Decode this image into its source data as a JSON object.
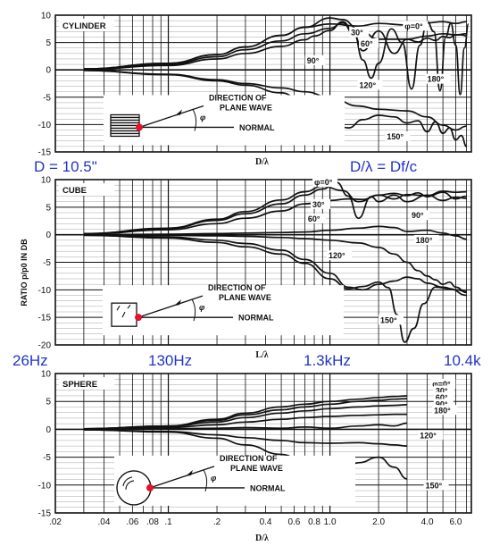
{
  "ylabel": "RATIO p/p0 IN DB",
  "labels": {
    "direction": "DIRECTION OF",
    "plane_wave": "PLANE WAVE",
    "normal": "NORMAL",
    "phi_symbol": "φ"
  },
  "blue_notes": {
    "d_size": "D = 10.5\"",
    "formula": "D/λ = Df/c",
    "freqs": [
      "26Hz",
      "130Hz",
      "1.3kHz",
      "10.4k"
    ]
  },
  "colors": {
    "ink": "#111111",
    "note": "#2233c8",
    "marker": "#e8102a"
  },
  "chart_data": [
    {
      "type": "line",
      "title": "CYLINDER",
      "xlabel": "D/λ",
      "xscale": "log",
      "xlim": [
        0.02,
        7.5
      ],
      "ylim": [
        -15,
        10
      ],
      "yticks": [
        "10",
        "5",
        "0",
        "-5",
        "-10",
        "-15"
      ],
      "xticks": [],
      "grid": true,
      "series": [
        {
          "name": "φ=0°",
          "x": [
            0.03,
            0.1,
            0.2,
            0.3,
            0.5,
            0.7,
            1.0,
            1.5,
            2.0,
            3.0,
            4.0,
            5.0,
            6.0,
            7.0
          ],
          "y": [
            0.2,
            1.2,
            2.8,
            4.2,
            6.3,
            7.8,
            8.4,
            8.0,
            8.5,
            8.2,
            8.6,
            8.8,
            8.5,
            8.8
          ]
        },
        {
          "name": "30°",
          "x": [
            0.03,
            0.1,
            0.2,
            0.3,
            0.5,
            0.7,
            1.0,
            1.2,
            1.5,
            2.0,
            3.0,
            4.0,
            5.0,
            6.0,
            7.0
          ],
          "y": [
            0.2,
            1.2,
            2.8,
            4.2,
            6.3,
            7.8,
            9.5,
            9.2,
            7.5,
            5.6,
            5.6,
            6.2,
            6.6,
            6.4,
            6.6
          ]
        },
        {
          "name": "60°",
          "x": [
            0.03,
            0.1,
            0.2,
            0.3,
            0.5,
            0.7,
            1.0,
            1.2,
            1.4,
            1.6,
            2.0,
            2.5,
            3.0,
            3.5,
            4.0,
            4.5,
            5.0,
            5.5,
            6.0,
            6.5,
            7.0
          ],
          "y": [
            0.1,
            1.0,
            2.4,
            3.7,
            5.3,
            6.6,
            7.6,
            8.6,
            6.6,
            3.5,
            7.1,
            3.0,
            5.6,
            5.1,
            5.8,
            5.4,
            6.1,
            5.9,
            6.4,
            6.4,
            6.2
          ]
        },
        {
          "name": "90°",
          "x": [
            0.03,
            0.1,
            0.2,
            0.3,
            0.5,
            0.7,
            0.8,
            1.0,
            1.2,
            1.4,
            1.6,
            1.8,
            2.0,
            2.4,
            2.8,
            3.2,
            3.6,
            4.0,
            4.4,
            4.8,
            5.2,
            5.6,
            6.0,
            6.4,
            6.8,
            7.2
          ],
          "y": [
            0.1,
            0.8,
            2.0,
            3.0,
            4.3,
            5.5,
            6.2,
            7.2,
            8.8,
            7.0,
            1.8,
            -1.5,
            1.2,
            7.5,
            5.0,
            -3.5,
            4.5,
            8.8,
            7.0,
            -3.8,
            6.0,
            8.5,
            4.5,
            -4.5,
            4.0,
            8.4
          ]
        },
        {
          "name": "120°",
          "x": [
            0.03,
            0.1,
            0.2,
            0.3,
            0.5,
            0.7,
            1.0,
            1.5,
            2.0,
            3.0,
            4.0,
            5.0,
            6.0,
            7.0
          ],
          "y": [
            -0.1,
            -0.8,
            -1.8,
            -2.5,
            -3.3,
            -4.0,
            -5.0,
            -6.6,
            -7.2,
            -7.5,
            -8.6,
            -10.1,
            -11.0,
            -10.3
          ]
        },
        {
          "name": "150°",
          "x": [
            0.03,
            0.1,
            0.2,
            0.3,
            0.5,
            0.7,
            1.0,
            1.3,
            1.6,
            2.0,
            2.5,
            3.0,
            3.5,
            4.0,
            4.5,
            5.0,
            5.5,
            6.0,
            6.5,
            7.0
          ],
          "y": [
            -0.1,
            -0.9,
            -2.0,
            -2.8,
            -4.2,
            -6.2,
            -9.2,
            -10.6,
            -9.1,
            -8.3,
            -8.6,
            -9.7,
            -9.3,
            -11.3,
            -9.5,
            -11.6,
            -10.6,
            -12.8,
            -12.0,
            -14.0
          ]
        }
      ],
      "annotations": [
        {
          "text": "φ=0°",
          "x": 2.9,
          "y": 7.5
        },
        {
          "text": "30°",
          "x": 1.35,
          "y": 6.3
        },
        {
          "text": "60°",
          "x": 1.55,
          "y": 4.3
        },
        {
          "text": "90°",
          "x": 0.72,
          "y": 1.2
        },
        {
          "text": "120°",
          "x": 1.52,
          "y": -3.3
        },
        {
          "text": "180°",
          "x": 4.0,
          "y": -2.2
        },
        {
          "text": "150°",
          "x": 2.25,
          "y": -12.7
        }
      ]
    },
    {
      "type": "line",
      "title": "CUBE",
      "xlabel": "L/λ",
      "xscale": "log",
      "xlim": [
        0.02,
        7.5
      ],
      "ylim": [
        -20,
        10
      ],
      "yticks": [
        "10",
        "5",
        "0",
        "-5",
        "-10",
        "-15",
        "-20"
      ],
      "xticks": [],
      "grid": true,
      "series": [
        {
          "name": "φ=0°",
          "x": [
            0.03,
            0.1,
            0.2,
            0.3,
            0.5,
            0.7,
            0.9,
            1.2,
            1.5,
            2.0,
            2.5,
            3.0,
            4.0,
            5.0,
            6.0,
            7.0
          ],
          "y": [
            0.2,
            1.2,
            2.8,
            4.2,
            6.3,
            7.8,
            8.8,
            8.0,
            6.0,
            7.2,
            6.5,
            7.3,
            7.1,
            7.9,
            7.7,
            7.8
          ]
        },
        {
          "name": "30°",
          "x": [
            0.03,
            0.1,
            0.2,
            0.3,
            0.5,
            0.7,
            0.9,
            1.1,
            1.3,
            1.5,
            1.8,
            2.0,
            2.5,
            3.0,
            4.0,
            5.0,
            6.0,
            7.0
          ],
          "y": [
            0.2,
            1.1,
            2.6,
            3.8,
            5.6,
            7.2,
            8.3,
            9.5,
            7.0,
            3.0,
            6.9,
            6.0,
            7.2,
            6.0,
            7.2,
            6.2,
            6.8,
            6.6
          ]
        },
        {
          "name": "60°",
          "x": [
            0.03,
            0.1,
            0.2,
            0.3,
            0.5,
            0.7,
            1.0,
            1.3,
            1.6,
            2.0,
            2.5,
            3.0,
            3.5,
            4.0,
            5.0,
            6.0,
            7.0
          ],
          "y": [
            0.1,
            0.9,
            2.0,
            3.0,
            4.3,
            5.6,
            6.2,
            6.5,
            6.4,
            7.2,
            7.5,
            7.1,
            7.6,
            6.9,
            7.7,
            6.5,
            7.0
          ]
        },
        {
          "name": "90°",
          "x": [
            0.03,
            0.1,
            0.2,
            0.3,
            0.5,
            0.7,
            1.0,
            1.5,
            2.0,
            2.5,
            3.0,
            4.0,
            5.0,
            6.0,
            7.0
          ],
          "y": [
            0.0,
            0.1,
            0.2,
            0.3,
            0.4,
            0.5,
            0.8,
            1.2,
            1.5,
            1.3,
            0.6,
            0.8,
            0.3,
            -0.2,
            -0.8
          ]
        },
        {
          "name": "180°",
          "x": [
            0.03,
            0.1,
            0.2,
            0.3,
            0.5,
            0.7,
            1.0,
            1.5,
            2.0,
            2.5,
            3.0,
            3.5,
            4.0,
            4.5,
            5.0,
            5.5,
            6.0,
            7.0
          ],
          "y": [
            0.0,
            -0.1,
            -0.2,
            -0.3,
            -0.5,
            -0.7,
            -1.0,
            -1.5,
            -2.3,
            -3.5,
            -5.0,
            -6.5,
            -7.5,
            -8.2,
            -9.0,
            -8.6,
            -9.5,
            -10.5
          ]
        },
        {
          "name": "120°",
          "x": [
            0.03,
            0.1,
            0.2,
            0.3,
            0.5,
            0.7,
            1.0,
            1.3,
            1.6,
            2.0,
            2.5,
            3.0,
            3.5,
            4.0,
            5.0,
            6.0,
            7.0
          ],
          "y": [
            -0.1,
            -0.4,
            -1.0,
            -1.6,
            -2.8,
            -4.5,
            -7.0,
            -9.5,
            -10.0,
            -9.0,
            -8.4,
            -7.7,
            -8.0,
            -8.8,
            -9.5,
            -10.0,
            -10.3
          ]
        },
        {
          "name": "150°",
          "x": [
            0.03,
            0.1,
            0.2,
            0.3,
            0.5,
            0.7,
            1.0,
            1.3,
            1.6,
            2.0,
            2.3,
            2.6,
            2.9,
            3.3,
            3.8,
            4.5,
            5.5,
            7.0
          ],
          "y": [
            -0.1,
            -0.6,
            -1.4,
            -2.2,
            -3.5,
            -5.2,
            -8.0,
            -9.8,
            -9.4,
            -8.6,
            -9.6,
            -14.5,
            -19.5,
            -17.0,
            -12.5,
            -9.5,
            -9.8,
            -11.0
          ]
        }
      ],
      "annotations": [
        {
          "text": "φ=0°",
          "x": 0.8,
          "y": 9.0
        },
        {
          "text": "30°",
          "x": 0.78,
          "y": 5.0
        },
        {
          "text": "60°",
          "x": 0.73,
          "y": 2.4
        },
        {
          "text": "90°",
          "x": 3.2,
          "y": 3.0
        },
        {
          "text": "180°",
          "x": 3.4,
          "y": -1.5
        },
        {
          "text": "120°",
          "x": 0.98,
          "y": -4.3
        },
        {
          "text": "150°",
          "x": 2.05,
          "y": -16.0
        }
      ]
    },
    {
      "type": "line",
      "title": "SPHERE",
      "xlabel": "D/λ",
      "xscale": "log",
      "xlim": [
        0.02,
        7.5
      ],
      "ylim": [
        -15,
        10
      ],
      "yticks": [
        "10",
        "5",
        "0",
        "-5",
        "-10",
        "-15"
      ],
      "xticks": [
        ".02",
        ".04",
        ".06",
        ".08",
        ".1",
        ".2",
        "0.4",
        "0.6",
        "0.8",
        "1.0",
        "2.0",
        "4.0",
        "6.0"
      ],
      "grid": true,
      "series": [
        {
          "name": "φ=0°",
          "x": [
            0.03,
            0.1,
            0.2,
            0.3,
            0.5,
            0.7,
            1.0,
            1.5,
            2.0,
            2.5,
            3.0
          ],
          "y": [
            0.1,
            0.6,
            1.8,
            2.9,
            4.0,
            4.5,
            5.0,
            5.4,
            5.7,
            5.9,
            6.0
          ]
        },
        {
          "name": "30°",
          "x": [
            0.03,
            0.1,
            0.2,
            0.3,
            0.5,
            0.7,
            1.0,
            1.5,
            2.0,
            2.5,
            3.0
          ],
          "y": [
            0.1,
            0.6,
            1.6,
            2.6,
            3.5,
            4.0,
            4.5,
            5.0,
            5.2,
            5.4,
            5.5
          ]
        },
        {
          "name": "60°",
          "x": [
            0.03,
            0.1,
            0.2,
            0.3,
            0.5,
            0.7,
            1.0,
            1.5,
            2.0,
            2.5,
            3.0
          ],
          "y": [
            0.1,
            0.5,
            1.3,
            2.1,
            2.9,
            3.3,
            3.7,
            4.0,
            4.2,
            4.3,
            4.4
          ]
        },
        {
          "name": "90°",
          "x": [
            0.03,
            0.1,
            0.2,
            0.3,
            0.5,
            0.7,
            1.0,
            1.5,
            2.0,
            2.5,
            3.0
          ],
          "y": [
            0.0,
            0.3,
            0.8,
            1.3,
            1.8,
            2.1,
            2.3,
            2.5,
            2.6,
            2.7,
            2.7
          ]
        },
        {
          "name": "180°",
          "x": [
            0.03,
            0.1,
            0.2,
            0.3,
            0.5,
            0.7,
            1.0,
            1.5,
            2.0,
            2.5,
            3.0
          ],
          "y": [
            0.0,
            0.1,
            0.2,
            0.3,
            0.2,
            0.4,
            0.2,
            0.6,
            0.8,
            0.6,
            1.1
          ]
        },
        {
          "name": "120°",
          "x": [
            0.03,
            0.1,
            0.2,
            0.3,
            0.5,
            0.7,
            1.0,
            1.5,
            2.0,
            2.5,
            3.0
          ],
          "y": [
            -0.1,
            -0.4,
            -1.0,
            -1.5,
            -2.0,
            -2.4,
            -2.5,
            -2.4,
            -2.6,
            -2.8,
            -3.0
          ]
        },
        {
          "name": "150°",
          "x": [
            0.03,
            0.1,
            0.2,
            0.3,
            0.5,
            0.7,
            1.0,
            1.2,
            1.5,
            2.0,
            2.5,
            3.0
          ],
          "y": [
            -0.1,
            -0.5,
            -1.6,
            -2.8,
            -4.5,
            -6.0,
            -7.6,
            -7.4,
            -6.0,
            -5.0,
            -6.8,
            -8.9
          ]
        }
      ],
      "annotations": [
        {
          "text": "φ=0°",
          "x": 4.3,
          "y": 7.6
        },
        {
          "text": "30°",
          "x": 4.5,
          "y": 6.4
        },
        {
          "text": "60°",
          "x": 4.5,
          "y": 5.2
        },
        {
          "text": "90°",
          "x": 4.5,
          "y": 4.0
        },
        {
          "text": "180°",
          "x": 4.4,
          "y": 2.9
        },
        {
          "text": "120°",
          "x": 3.6,
          "y": -1.6
        },
        {
          "text": "150°",
          "x": 3.9,
          "y": -10.6
        }
      ]
    }
  ]
}
